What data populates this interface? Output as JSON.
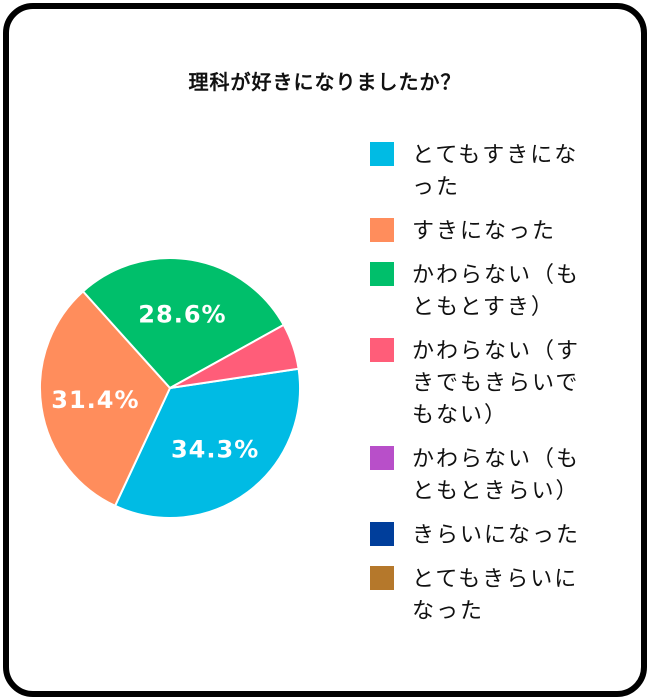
{
  "chart_data": {
    "type": "pie",
    "title": "理科が好きになりましたか？",
    "categories": [
      "とてもすきになった",
      "すきになった",
      "かわらない（もともとすき）",
      "かわらない（すきでもきらいでもない）",
      "かわらない（もともときらい）",
      "きらいになった",
      "とてもきらいになった"
    ],
    "values": [
      34.3,
      31.4,
      28.6,
      5.7,
      0,
      0,
      0
    ],
    "data_labels": [
      "34.3%",
      "31.4%",
      "28.6%",
      "",
      "",
      "",
      ""
    ],
    "colors": [
      "#00BBE4",
      "#FF8D5C",
      "#00BF6B",
      "#FF5D79",
      "#B84FC9",
      "#003E9B",
      "#B5782B"
    ],
    "legend_position": "right"
  }
}
